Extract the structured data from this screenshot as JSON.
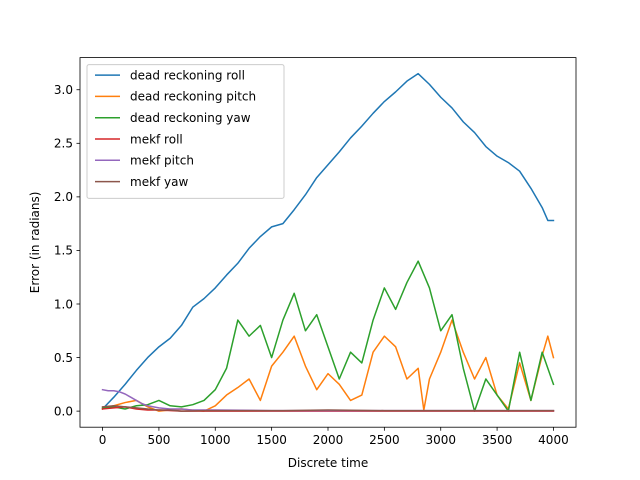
{
  "chart_data": {
    "type": "line",
    "title": "",
    "xlabel": "Discrete time",
    "ylabel": "Error (in radians)",
    "xlim": [
      -200,
      4200
    ],
    "ylim": [
      -0.15,
      3.3
    ],
    "xticks": [
      0,
      500,
      1000,
      1500,
      2000,
      2500,
      3000,
      3500,
      4000
    ],
    "yticks": [
      0.0,
      0.5,
      1.0,
      1.5,
      2.0,
      2.5,
      3.0
    ],
    "xtick_labels": [
      "0",
      "500",
      "1000",
      "1500",
      "2000",
      "2500",
      "3000",
      "3500",
      "4000"
    ],
    "ytick_labels": [
      "0.0",
      "0.5",
      "1.0",
      "1.5",
      "2.0",
      "2.5",
      "3.0"
    ],
    "grid": false,
    "legend_position": "top-left",
    "series": [
      {
        "name": "dead reckoning roll",
        "color": "#1f77b4",
        "x": [
          0,
          100,
          200,
          300,
          400,
          500,
          600,
          700,
          800,
          900,
          1000,
          1100,
          1200,
          1300,
          1400,
          1500,
          1600,
          1700,
          1800,
          1900,
          2000,
          2100,
          2200,
          2300,
          2400,
          2500,
          2600,
          2700,
          2800,
          2900,
          3000,
          3100,
          3200,
          3300,
          3400,
          3500,
          3600,
          3700,
          3800,
          3900,
          3950,
          4000
        ],
        "y": [
          0.02,
          0.13,
          0.25,
          0.38,
          0.5,
          0.6,
          0.68,
          0.8,
          0.97,
          1.05,
          1.15,
          1.27,
          1.38,
          1.52,
          1.63,
          1.72,
          1.75,
          1.88,
          2.02,
          2.18,
          2.3,
          2.42,
          2.55,
          2.66,
          2.78,
          2.89,
          2.98,
          3.08,
          3.15,
          3.05,
          2.93,
          2.83,
          2.7,
          2.6,
          2.47,
          2.38,
          2.32,
          2.24,
          2.08,
          1.9,
          1.78,
          1.78
        ]
      },
      {
        "name": "dead reckoning pitch",
        "color": "#ff7f0e",
        "x": [
          0,
          100,
          200,
          300,
          400,
          500,
          600,
          700,
          800,
          900,
          1000,
          1100,
          1200,
          1300,
          1400,
          1500,
          1600,
          1700,
          1800,
          1900,
          2000,
          2100,
          2200,
          2300,
          2400,
          2500,
          2600,
          2700,
          2800,
          2850,
          2900,
          3000,
          3100,
          3200,
          3300,
          3400,
          3500,
          3600,
          3700,
          3800,
          3900,
          3950,
          4000
        ],
        "y": [
          0.02,
          0.05,
          0.08,
          0.1,
          0.04,
          0.0,
          0.01,
          0.02,
          0.01,
          0.0,
          0.05,
          0.15,
          0.22,
          0.3,
          0.1,
          0.42,
          0.55,
          0.7,
          0.42,
          0.2,
          0.35,
          0.25,
          0.1,
          0.15,
          0.55,
          0.7,
          0.6,
          0.3,
          0.4,
          0.01,
          0.3,
          0.55,
          0.85,
          0.55,
          0.3,
          0.5,
          0.15,
          0.02,
          0.45,
          0.1,
          0.52,
          0.7,
          0.5
        ]
      },
      {
        "name": "dead reckoning yaw",
        "color": "#2ca02c",
        "x": [
          0,
          100,
          200,
          300,
          400,
          500,
          600,
          700,
          800,
          900,
          1000,
          1100,
          1200,
          1300,
          1400,
          1500,
          1600,
          1700,
          1800,
          1900,
          2000,
          2100,
          2200,
          2300,
          2400,
          2500,
          2600,
          2700,
          2800,
          2900,
          3000,
          3100,
          3200,
          3300,
          3400,
          3500,
          3600,
          3700,
          3800,
          3900,
          4000
        ],
        "y": [
          0.03,
          0.04,
          0.02,
          0.05,
          0.06,
          0.1,
          0.05,
          0.04,
          0.06,
          0.1,
          0.2,
          0.4,
          0.85,
          0.7,
          0.8,
          0.5,
          0.85,
          1.1,
          0.75,
          0.9,
          0.6,
          0.3,
          0.55,
          0.45,
          0.85,
          1.15,
          0.95,
          1.2,
          1.4,
          1.15,
          0.75,
          0.9,
          0.4,
          0.0,
          0.3,
          0.15,
          0.0,
          0.55,
          0.1,
          0.55,
          0.25
        ]
      },
      {
        "name": "mekf roll",
        "color": "#d62728",
        "x": [
          0,
          100,
          200,
          300,
          400,
          500,
          700,
          1000,
          1500,
          2000,
          2500,
          3000,
          3500,
          4000
        ],
        "y": [
          0.02,
          0.03,
          0.04,
          0.02,
          0.01,
          0.01,
          0.0,
          0.0,
          0.0,
          0.0,
          0.0,
          0.0,
          0.0,
          0.0
        ]
      },
      {
        "name": "mekf pitch",
        "color": "#9467bd",
        "x": [
          0,
          50,
          100,
          150,
          200,
          250,
          300,
          350,
          400,
          500,
          600,
          700,
          800,
          1000,
          1500,
          2000,
          3000,
          4000
        ],
        "y": [
          0.2,
          0.19,
          0.19,
          0.18,
          0.16,
          0.13,
          0.1,
          0.07,
          0.05,
          0.03,
          0.02,
          0.02,
          0.01,
          0.01,
          0.005,
          0.005,
          0.005,
          0.005
        ]
      },
      {
        "name": "mekf yaw",
        "color": "#8c564b",
        "x": [
          0,
          100,
          200,
          300,
          400,
          500,
          600,
          700,
          900,
          1200,
          1600,
          2000,
          2500,
          3000,
          3500,
          4000
        ],
        "y": [
          0.04,
          0.05,
          0.04,
          0.03,
          0.02,
          0.01,
          0.01,
          0.0,
          0.005,
          0.005,
          0.005,
          0.01,
          0.005,
          0.005,
          0.005,
          0.005
        ]
      }
    ]
  }
}
